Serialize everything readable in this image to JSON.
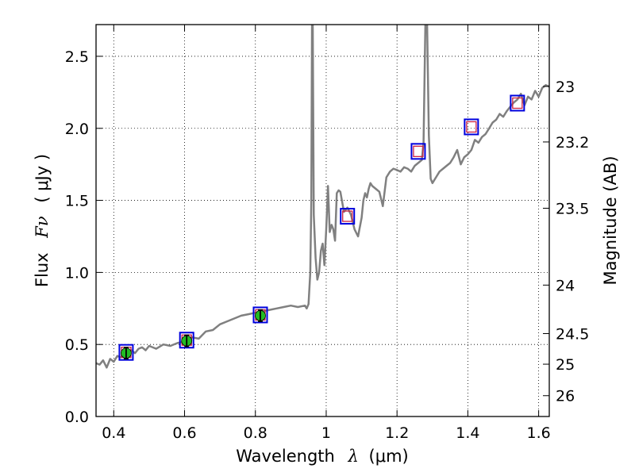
{
  "chart_data": {
    "type": "line",
    "xlabel": "Wavelength",
    "xlabel_symbol": "λ",
    "xlabel_unit": "(μm)",
    "ylabel": "Flux",
    "ylabel_symbol": "Fν",
    "ylabel_unit": "( μJy )",
    "y2label": "Magnitude (AB)",
    "xlim": [
      0.35,
      1.63
    ],
    "ylim": [
      0.0,
      2.72
    ],
    "grid": true,
    "x_ticks": [
      0.4,
      0.6,
      0.8,
      1.0,
      1.2,
      1.4,
      1.6
    ],
    "x_tick_labels": [
      "0.4",
      "0.6",
      "0.8",
      "1",
      "1.2",
      "1.4",
      "1.6"
    ],
    "y_ticks": [
      0.0,
      0.5,
      1.0,
      1.5,
      2.0,
      2.5
    ],
    "y_tick_labels": [
      "0.0",
      "0.5",
      "1.0",
      "1.5",
      "2.0",
      "2.5"
    ],
    "mag_ticks": [
      23,
      23.2,
      23.5,
      24,
      24.5,
      25,
      26
    ],
    "mag_tick_labels": [
      "23",
      "23.2",
      "23.5",
      "24",
      "24.5",
      "25",
      "26"
    ],
    "model_color": "#808080",
    "observed_color": "#22bb22",
    "box_color": "#0000dd",
    "model_photometry_color": "#cc2244",
    "model_spectrum": {
      "x": [
        0.35,
        0.36,
        0.37,
        0.38,
        0.39,
        0.4,
        0.41,
        0.42,
        0.43,
        0.44,
        0.45,
        0.46,
        0.47,
        0.48,
        0.49,
        0.5,
        0.52,
        0.54,
        0.56,
        0.58,
        0.6,
        0.62,
        0.64,
        0.66,
        0.68,
        0.7,
        0.72,
        0.74,
        0.76,
        0.78,
        0.8,
        0.82,
        0.84,
        0.86,
        0.88,
        0.9,
        0.92,
        0.94,
        0.945,
        0.95,
        0.955,
        0.958,
        0.96,
        0.962,
        0.965,
        0.97,
        0.975,
        0.98,
        0.985,
        0.99,
        0.995,
        1.0,
        1.005,
        1.01,
        1.015,
        1.02,
        1.025,
        1.03,
        1.035,
        1.04,
        1.05,
        1.06,
        1.07,
        1.08,
        1.09,
        1.1,
        1.105,
        1.11,
        1.115,
        1.12,
        1.125,
        1.13,
        1.14,
        1.15,
        1.16,
        1.17,
        1.18,
        1.19,
        1.2,
        1.21,
        1.22,
        1.23,
        1.24,
        1.25,
        1.26,
        1.27,
        1.275,
        1.28,
        1.285,
        1.29,
        1.295,
        1.3,
        1.31,
        1.32,
        1.33,
        1.34,
        1.35,
        1.36,
        1.37,
        1.38,
        1.39,
        1.4,
        1.41,
        1.42,
        1.43,
        1.44,
        1.45,
        1.46,
        1.47,
        1.48,
        1.49,
        1.5,
        1.51,
        1.52,
        1.53,
        1.54,
        1.55,
        1.56,
        1.57,
        1.58,
        1.59,
        1.6,
        1.61,
        1.62,
        1.63
      ],
      "y": [
        0.37,
        0.36,
        0.39,
        0.34,
        0.4,
        0.38,
        0.42,
        0.41,
        0.45,
        0.43,
        0.46,
        0.44,
        0.47,
        0.48,
        0.46,
        0.49,
        0.47,
        0.5,
        0.49,
        0.51,
        0.52,
        0.55,
        0.54,
        0.59,
        0.6,
        0.64,
        0.66,
        0.68,
        0.7,
        0.71,
        0.72,
        0.73,
        0.74,
        0.75,
        0.76,
        0.77,
        0.76,
        0.77,
        0.75,
        0.78,
        1.0,
        1.5,
        2.72,
        2.72,
        1.4,
        1.1,
        0.95,
        1.0,
        1.15,
        1.2,
        1.05,
        1.3,
        1.6,
        1.28,
        1.33,
        1.3,
        1.22,
        1.55,
        1.57,
        1.56,
        1.42,
        1.45,
        1.4,
        1.3,
        1.25,
        1.38,
        1.5,
        1.55,
        1.52,
        1.58,
        1.62,
        1.6,
        1.58,
        1.56,
        1.46,
        1.66,
        1.7,
        1.72,
        1.71,
        1.7,
        1.73,
        1.72,
        1.7,
        1.74,
        1.76,
        1.78,
        1.9,
        2.72,
        2.72,
        1.95,
        1.65,
        1.62,
        1.66,
        1.7,
        1.72,
        1.74,
        1.76,
        1.8,
        1.85,
        1.75,
        1.8,
        1.82,
        1.85,
        1.92,
        1.9,
        1.94,
        1.96,
        2.0,
        2.04,
        2.06,
        2.1,
        2.08,
        2.12,
        2.15,
        2.18,
        2.2,
        2.24,
        2.16,
        2.22,
        2.2,
        2.26,
        2.22,
        2.28,
        2.3,
        2.29
      ]
    },
    "observed_photometry": [
      {
        "x": 0.435,
        "y": 0.44,
        "err": 0.04
      },
      {
        "x": 0.606,
        "y": 0.525,
        "err": 0.04
      },
      {
        "x": 0.814,
        "y": 0.7,
        "err": 0.04
      }
    ],
    "model_photometry": [
      {
        "x": 0.435,
        "y": 0.445
      },
      {
        "x": 0.606,
        "y": 0.53
      },
      {
        "x": 0.814,
        "y": 0.705
      },
      {
        "x": 1.06,
        "y": 1.39
      },
      {
        "x": 1.26,
        "y": 1.84
      },
      {
        "x": 1.41,
        "y": 2.01
      },
      {
        "x": 1.54,
        "y": 2.175
      }
    ]
  }
}
